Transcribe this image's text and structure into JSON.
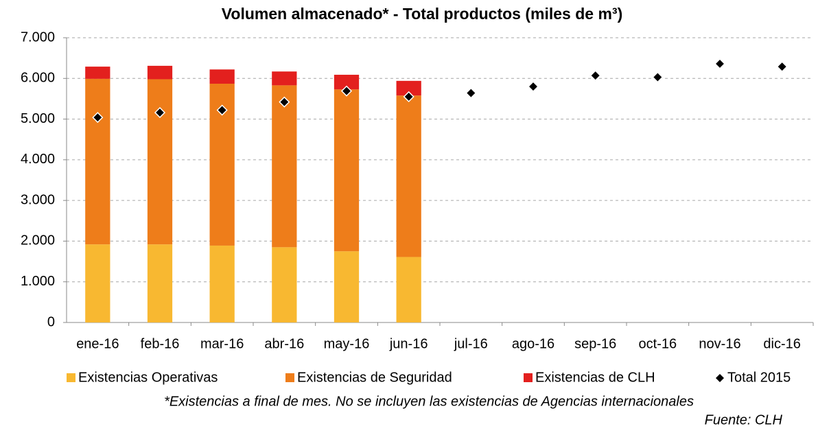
{
  "chart_data": {
    "type": "stacked_bar_scatter",
    "title": "Volumen almacenado* - Total productos (miles de m³)",
    "categories": [
      "ene-16",
      "feb-16",
      "mar-16",
      "abr-16",
      "may-16",
      "jun-16",
      "jul-16",
      "ago-16",
      "sep-16",
      "oct-16",
      "nov-16",
      "dic-16"
    ],
    "series": [
      {
        "name": "Existencias Operativas",
        "color": "#f8b831",
        "kind": "bar",
        "values": [
          1920,
          1920,
          1890,
          1850,
          1750,
          1610,
          null,
          null,
          null,
          null,
          null,
          null
        ]
      },
      {
        "name": "Existencias de Seguridad",
        "color": "#ee7d1a",
        "kind": "bar",
        "values": [
          4070,
          4060,
          3980,
          3980,
          3980,
          3970,
          null,
          null,
          null,
          null,
          null,
          null
        ]
      },
      {
        "name": "Existencias de CLH",
        "color": "#e3201e",
        "kind": "bar",
        "values": [
          300,
          330,
          350,
          340,
          360,
          360,
          null,
          null,
          null,
          null,
          null,
          null
        ]
      },
      {
        "name": "Total 2015",
        "color": "#000000",
        "kind": "marker",
        "values": [
          5040,
          5160,
          5220,
          5420,
          5690,
          5550,
          5640,
          5800,
          6070,
          6030,
          6360,
          6290
        ]
      }
    ],
    "ylim": [
      0,
      7000
    ],
    "yticks": [
      0,
      {
        "value": 1000,
        "label": "1.000"
      },
      {
        "value": 2000,
        "label": "2.000"
      },
      {
        "value": 3000,
        "label": "3.000"
      },
      {
        "value": 4000,
        "label": "4.000"
      },
      {
        "value": 5000,
        "label": "5.000"
      },
      {
        "value": 6000,
        "label": "6.000"
      },
      {
        "value": 7000,
        "label": "7.000"
      }
    ],
    "grid": true,
    "legend": "bottom",
    "footnote": "*Existencias a final de mes. No se incluyen las existencias de Agencias internacionales",
    "source": "Fuente: CLH"
  }
}
